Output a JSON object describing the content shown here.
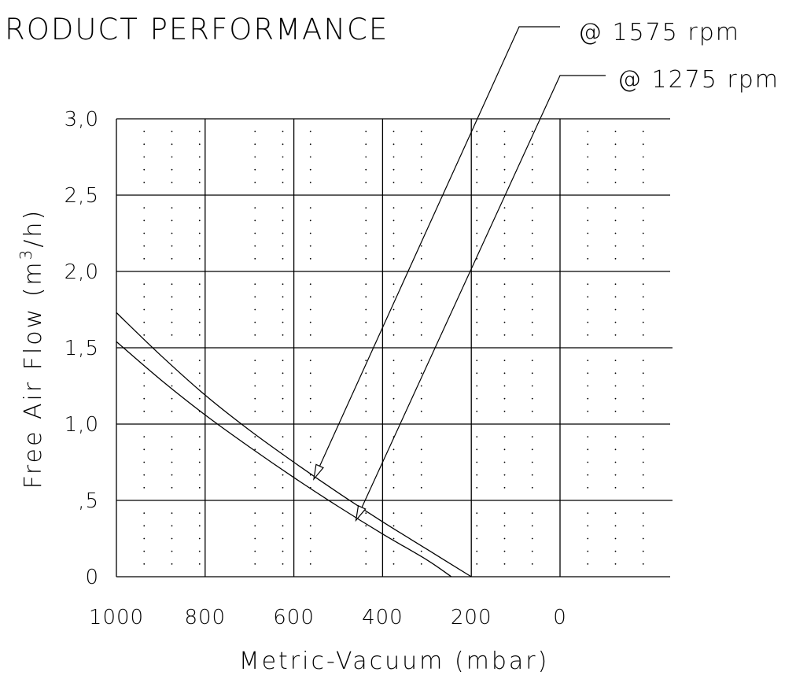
{
  "title": "RODUCT PERFORMANCE",
  "callouts": [
    {
      "label": "@ 1575 rpm",
      "series": "@ 1575 rpm",
      "point_x": 555,
      "point_y": 0.64
    },
    {
      "label": "@ 1275 rpm",
      "series": "@ 1275 rpm",
      "point_x": 460,
      "point_y": 0.37
    }
  ],
  "chart_data": {
    "type": "line",
    "title": "RODUCT PERFORMANCE",
    "xlabel": "Metric-Vacuum (mbar)",
    "ylabel_prefix": "Free Air Flow (m",
    "ylabel_superscript": "3",
    "ylabel_suffix": "/h)",
    "xlim": [
      1000,
      0
    ],
    "ylim": [
      0,
      3.0
    ],
    "x_reversed": true,
    "x_ticks": [
      1000,
      800,
      600,
      400,
      200,
      0
    ],
    "x_tick_labels": [
      "1000",
      "800",
      "600",
      "400",
      "200",
      "0"
    ],
    "y_ticks": [
      0,
      0.5,
      1.0,
      1.5,
      2.0,
      2.5,
      3.0
    ],
    "y_tick_labels": [
      "0",
      ",5",
      "1,0",
      "1,5",
      "2,0",
      "2,5",
      "3,0"
    ],
    "grid": true,
    "minor_dot_grid": true,
    "series": [
      {
        "name": "@ 1575 rpm",
        "x": [
          1000,
          900,
          800,
          700,
          600,
          500,
          400,
          300,
          200
        ],
        "y": [
          1.73,
          1.45,
          1.19,
          0.96,
          0.75,
          0.55,
          0.36,
          0.18,
          0.0
        ]
      },
      {
        "name": "@ 1275 rpm",
        "x": [
          1000,
          900,
          800,
          700,
          600,
          500,
          400,
          300,
          245
        ],
        "y": [
          1.54,
          1.29,
          1.06,
          0.85,
          0.65,
          0.46,
          0.28,
          0.11,
          0.0
        ]
      }
    ]
  }
}
